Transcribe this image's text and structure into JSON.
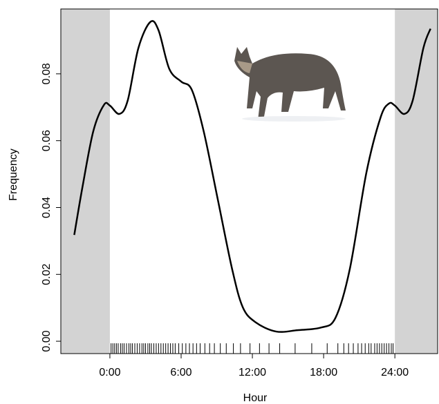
{
  "chart_data": {
    "type": "line",
    "x_label": "Hour",
    "y_label": "Frequency",
    "xlim": [
      -4.13,
      27.6
    ],
    "ylim": [
      -0.0037,
      0.0994
    ],
    "xticks": [
      {
        "value": 0,
        "label": "0:00"
      },
      {
        "value": 6,
        "label": "6:00"
      },
      {
        "value": 12,
        "label": "12:00"
      },
      {
        "value": 18,
        "label": "18:00"
      },
      {
        "value": 24,
        "label": "24:00"
      }
    ],
    "yticks": [
      {
        "value": 0,
        "label": "0.00"
      },
      0.02,
      0.04,
      0.06,
      0.08
    ],
    "shade_outside": [
      0,
      24
    ],
    "shade_color": "#d3d3d3",
    "color": "#000000",
    "x": [
      -3.0,
      -2.3,
      -1.4,
      -0.5,
      0.0,
      0.8,
      1.5,
      2.4,
      3.4,
      4.1,
      5.0,
      6.0,
      6.9,
      7.9,
      9.1,
      10.3,
      11.2,
      12.3,
      14.0,
      15.8,
      17.8,
      19.0,
      20.2,
      21.6,
      22.8,
      23.5,
      24.0,
      24.8,
      25.5,
      26.4,
      27.0
    ],
    "values": [
      0.0318,
      0.0463,
      0.0628,
      0.0707,
      0.0705,
      0.068,
      0.072,
      0.0877,
      0.0955,
      0.093,
      0.0815,
      0.0777,
      0.0752,
      0.0628,
      0.0422,
      0.0215,
      0.0101,
      0.0056,
      0.0029,
      0.0033,
      0.0041,
      0.007,
      0.0215,
      0.0504,
      0.067,
      0.0711,
      0.0705,
      0.068,
      0.072,
      0.0877,
      0.0935
    ],
    "rug": [
      0.1,
      0.25,
      0.4,
      0.55,
      0.7,
      0.9,
      1.05,
      1.2,
      1.4,
      1.6,
      1.75,
      1.9,
      2.1,
      2.3,
      2.5,
      2.7,
      2.85,
      3.0,
      3.2,
      3.35,
      3.5,
      3.7,
      3.9,
      4.1,
      4.3,
      4.5,
      4.7,
      4.9,
      5.1,
      5.3,
      5.5,
      5.8,
      6.1,
      6.4,
      6.7,
      7.0,
      7.3,
      7.6,
      8.0,
      8.4,
      8.8,
      9.3,
      9.8,
      10.4,
      11.0,
      11.8,
      12.6,
      13.4,
      14.3,
      15.6,
      17.0,
      18.3,
      19.2,
      19.7,
      20.1,
      20.5,
      20.9,
      21.2,
      21.5,
      21.8,
      22.0,
      22.3,
      22.5,
      22.7,
      22.9,
      23.1,
      23.3,
      23.5,
      23.7,
      23.85
    ]
  }
}
